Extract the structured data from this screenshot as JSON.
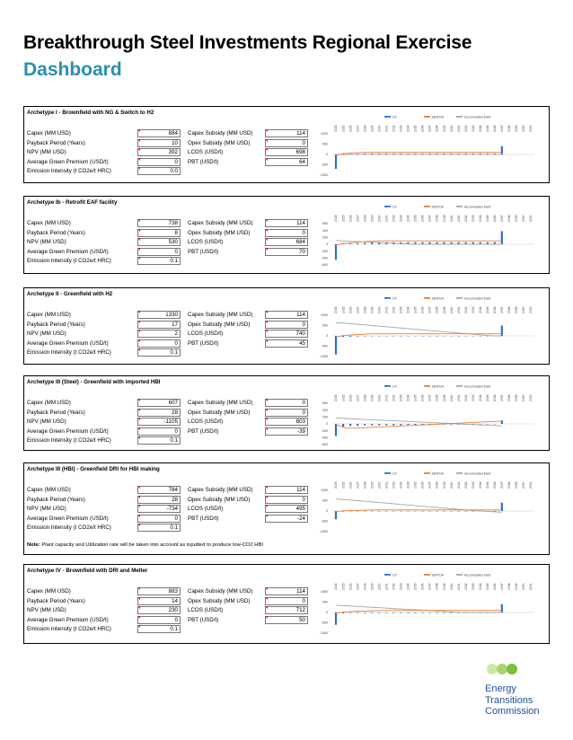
{
  "header": {
    "title": "Breakthrough Steel Investments Regional Exercise",
    "subtitle": "Dashboard"
  },
  "labels": {
    "capex": "Capex (MM USD)",
    "payback": "Payback Period (Years)",
    "npv": "NPV (MM USD)",
    "green_premium": "Average Green Premium (USD/t)",
    "emission": "Emission Intensity (t CO2e/t HRC)",
    "capex_subsidy": "Capex Subsidy (MM USD)",
    "opex_subsidy": "Opex Subsidy (MM USD)",
    "lcos": "LCOS (USD/t)",
    "pbt": "PBT (USD/t)"
  },
  "legend": [
    "CF",
    "EBITDA",
    "Accumulated Debt"
  ],
  "years": [
    "2024",
    "2025",
    "2026",
    "2027",
    "2028",
    "2029",
    "2030",
    "2031",
    "2032",
    "2033",
    "2034",
    "2035",
    "2036",
    "2037",
    "2038",
    "2039",
    "2040",
    "2041",
    "2042",
    "2043",
    "2044",
    "2045",
    "2046",
    "2047",
    "2048",
    "2049",
    "2050",
    "2051"
  ],
  "colors": {
    "cf": "#2e6fd1",
    "ebitda": "#ed7d31",
    "debt": "#a6a6a6",
    "accent": "#2a8fb0",
    "marker": "#d42020"
  },
  "panels": [
    {
      "title": "Archetype I - Brownfield with NG & Switch to H2",
      "capex": "884",
      "payback": "10",
      "npv": "392",
      "green_premium": "0",
      "emission": "0.0",
      "capex_subsidy": "114",
      "opex_subsidy": "0",
      "lcos": "698",
      "pbt": "64",
      "yticks": [
        "1000",
        "500",
        "0",
        "-500",
        "-1000"
      ]
    },
    {
      "title": "Archetype Ib - Retrofit EAF facility",
      "capex": "738",
      "payback": "8",
      "npv": "530",
      "green_premium": "0",
      "emission": "0.1",
      "capex_subsidy": "114",
      "opex_subsidy": "0",
      "lcos": "684",
      "pbt": "70",
      "yticks": [
        "600",
        "400",
        "200",
        "0",
        "-200",
        "-400",
        "-600"
      ]
    },
    {
      "title": "Archetype II - Greenfield with H2",
      "capex": "1330",
      "payback": "17",
      "npv": "2",
      "green_premium": "0",
      "emission": "0.1",
      "capex_subsidy": "114",
      "opex_subsidy": "0",
      "lcos": "740",
      "pbt": "45",
      "yticks": [
        "1000",
        "500",
        "0",
        "-500",
        "-1000"
      ]
    },
    {
      "title": "Archetype III (Steel) - Greenfield with imported HBI",
      "capex": "607",
      "payback": "28",
      "npv": "-1105",
      "green_premium": "0",
      "emission": "0.1",
      "capex_subsidy": "0",
      "opex_subsidy": "0",
      "lcos": "803",
      "pbt": "-39",
      "yticks": [
        "600",
        "400",
        "200",
        "0",
        "-200",
        "-400",
        "-600"
      ]
    },
    {
      "title": "Archetype III (HBI) - Greenfield DRI for HBI making",
      "capex": "784",
      "payback": "28",
      "npv": "-734",
      "green_premium": "0",
      "emission": "0.1",
      "capex_subsidy": "114",
      "opex_subsidy": "0",
      "lcos": "495",
      "pbt": "-24",
      "yticks": [
        "1000",
        "500",
        "0",
        "-500",
        "-1000"
      ],
      "note_prefix": "Note:",
      "note": " Plant capacity and Utilization rate will be taken into account as inputted to produce low-CO2 HBI"
    },
    {
      "title": "Archetype IV - Brownfield with DRI and Melter",
      "capex": "883",
      "payback": "14",
      "npv": "230",
      "green_premium": "0",
      "emission": "0.1",
      "capex_subsidy": "114",
      "opex_subsidy": "0",
      "lcos": "712",
      "pbt": "50",
      "yticks": [
        "1000",
        "500",
        "0",
        "-500",
        "-1000"
      ]
    }
  ],
  "chart_data": [
    {
      "type": "bar",
      "ylim": [
        -1000,
        1000
      ],
      "legend": [
        "CF",
        "EBITDA",
        "Accumulated Debt"
      ],
      "x": [
        "2024",
        "2025",
        "2026",
        "2027",
        "2028",
        "2029",
        "2030",
        "2031",
        "2032",
        "2033",
        "2034",
        "2035",
        "2036",
        "2037",
        "2038",
        "2039",
        "2040",
        "2041",
        "2042",
        "2043",
        "2044",
        "2045",
        "2046",
        "2047",
        "2048",
        "2049",
        "2050",
        "2051"
      ],
      "series": [
        {
          "name": "CF",
          "values": [
            -700,
            20,
            30,
            40,
            50,
            50,
            50,
            50,
            50,
            50,
            50,
            50,
            50,
            50,
            50,
            50,
            50,
            50,
            50,
            50,
            50,
            50,
            50,
            400,
            0,
            0,
            0,
            0
          ]
        },
        {
          "name": "EBITDA",
          "values": [
            -50,
            40,
            70,
            90,
            100,
            100,
            100,
            100,
            100,
            100,
            100,
            100,
            100,
            100,
            100,
            100,
            100,
            100,
            100,
            100,
            100,
            100,
            100,
            100,
            0,
            0,
            0,
            0
          ]
        },
        {
          "name": "Accumulated Debt",
          "values": [
            0,
            0,
            0,
            0,
            0,
            0,
            0,
            0,
            0,
            0,
            0,
            0,
            0,
            0,
            0,
            0,
            0,
            0,
            0,
            0,
            0,
            0,
            0,
            0,
            0,
            0,
            0,
            0
          ]
        }
      ]
    },
    {
      "type": "bar",
      "ylim": [
        -600,
        600
      ],
      "legend": [
        "CF",
        "EBITDA",
        "Accumulated Debt"
      ],
      "x": [
        "2024",
        "2025",
        "2026",
        "2027",
        "2028",
        "2029",
        "2030",
        "2031",
        "2032",
        "2033",
        "2034",
        "2035",
        "2036",
        "2037",
        "2038",
        "2039",
        "2040",
        "2041",
        "2042",
        "2043",
        "2044",
        "2045",
        "2046",
        "2047",
        "2048",
        "2049",
        "2050",
        "2051"
      ],
      "series": [
        {
          "name": "CF",
          "values": [
            -450,
            10,
            20,
            30,
            40,
            60,
            60,
            60,
            60,
            60,
            60,
            60,
            60,
            60,
            60,
            60,
            60,
            60,
            60,
            60,
            60,
            60,
            60,
            380,
            0,
            0,
            0,
            0
          ]
        },
        {
          "name": "EBITDA",
          "values": [
            -20,
            20,
            40,
            60,
            80,
            90,
            100,
            100,
            100,
            100,
            100,
            100,
            100,
            100,
            100,
            100,
            100,
            100,
            100,
            100,
            100,
            100,
            100,
            100,
            0,
            0,
            0,
            0
          ]
        },
        {
          "name": "Accumulated Debt",
          "values": [
            110,
            100,
            90,
            80,
            70,
            60,
            50,
            40,
            30,
            20,
            10,
            0,
            0,
            0,
            0,
            0,
            0,
            0,
            0,
            0,
            0,
            0,
            0,
            0,
            0,
            0,
            0,
            0
          ]
        }
      ]
    },
    {
      "type": "bar",
      "ylim": [
        -1000,
        1000
      ],
      "legend": [
        "CF",
        "EBITDA",
        "Accumulated Debt"
      ],
      "x": [
        "2024",
        "2025",
        "2026",
        "2027",
        "2028",
        "2029",
        "2030",
        "2031",
        "2032",
        "2033",
        "2034",
        "2035",
        "2036",
        "2037",
        "2038",
        "2039",
        "2040",
        "2041",
        "2042",
        "2043",
        "2044",
        "2045",
        "2046",
        "2047",
        "2048",
        "2049",
        "2050",
        "2051"
      ],
      "series": [
        {
          "name": "CF",
          "values": [
            -900,
            -50,
            -40,
            -30,
            -20,
            -20,
            -20,
            -20,
            -20,
            -20,
            -20,
            -20,
            -20,
            -20,
            -20,
            -20,
            -20,
            -20,
            -20,
            -20,
            -20,
            -20,
            -20,
            500,
            0,
            0,
            0,
            0
          ]
        },
        {
          "name": "EBITDA",
          "values": [
            -60,
            20,
            40,
            60,
            80,
            100,
            100,
            100,
            100,
            100,
            100,
            100,
            100,
            100,
            100,
            100,
            100,
            100,
            100,
            100,
            100,
            100,
            100,
            100,
            0,
            0,
            0,
            0
          ]
        },
        {
          "name": "Accumulated Debt",
          "values": [
            640,
            620,
            590,
            560,
            530,
            500,
            470,
            440,
            410,
            380,
            350,
            320,
            290,
            260,
            230,
            200,
            170,
            140,
            110,
            80,
            50,
            20,
            0,
            0,
            0,
            0,
            0,
            0
          ]
        }
      ]
    },
    {
      "type": "bar",
      "ylim": [
        -600,
        600
      ],
      "legend": [
        "CF",
        "EBITDA",
        "Accumulated Debt"
      ],
      "x": [
        "2024",
        "2025",
        "2026",
        "2027",
        "2028",
        "2029",
        "2030",
        "2031",
        "2032",
        "2033",
        "2034",
        "2035",
        "2036",
        "2037",
        "2038",
        "2039",
        "2040",
        "2041",
        "2042",
        "2043",
        "2044",
        "2045",
        "2046",
        "2047",
        "2048",
        "2049",
        "2050",
        "2051"
      ],
      "series": [
        {
          "name": "CF",
          "values": [
            -350,
            -80,
            -60,
            -50,
            -40,
            -40,
            -40,
            -40,
            -40,
            -40,
            -30,
            -30,
            -30,
            -30,
            -20,
            -20,
            -20,
            -20,
            -10,
            -10,
            -10,
            -10,
            -10,
            100,
            0,
            0,
            0,
            0
          ]
        },
        {
          "name": "EBITDA",
          "values": [
            -20,
            -100,
            -130,
            -120,
            -110,
            -100,
            -90,
            -80,
            -70,
            -60,
            -50,
            -40,
            -30,
            -20,
            -10,
            0,
            10,
            20,
            30,
            40,
            50,
            60,
            70,
            80,
            0,
            0,
            0,
            0
          ]
        },
        {
          "name": "Accumulated Debt",
          "values": [
            170,
            160,
            150,
            140,
            130,
            120,
            110,
            100,
            90,
            80,
            70,
            60,
            50,
            40,
            30,
            20,
            10,
            0,
            -10,
            -20,
            -30,
            -40,
            -50,
            -60,
            0,
            0,
            0,
            0
          ]
        }
      ]
    },
    {
      "type": "bar",
      "ylim": [
        -1000,
        1000
      ],
      "legend": [
        "CF",
        "EBITDA",
        "Accumulated Debt"
      ],
      "x": [
        "2024",
        "2025",
        "2026",
        "2027",
        "2028",
        "2029",
        "2030",
        "2031",
        "2032",
        "2033",
        "2034",
        "2035",
        "2036",
        "2037",
        "2038",
        "2039",
        "2040",
        "2041",
        "2042",
        "2043",
        "2044",
        "2045",
        "2046",
        "2047",
        "2048",
        "2049",
        "2050",
        "2051"
      ],
      "series": [
        {
          "name": "CF",
          "values": [
            -400,
            -30,
            -20,
            -20,
            -20,
            -20,
            -20,
            -20,
            -20,
            -20,
            -20,
            -20,
            -20,
            -20,
            -20,
            -20,
            -20,
            -20,
            -20,
            -20,
            -20,
            -20,
            -20,
            400,
            0,
            0,
            0,
            0
          ]
        },
        {
          "name": "EBITDA",
          "values": [
            -30,
            10,
            20,
            30,
            40,
            50,
            50,
            50,
            50,
            50,
            50,
            50,
            50,
            50,
            50,
            50,
            50,
            50,
            50,
            50,
            50,
            50,
            50,
            50,
            0,
            0,
            0,
            0
          ]
        },
        {
          "name": "Accumulated Debt",
          "values": [
            580,
            560,
            530,
            500,
            470,
            440,
            410,
            380,
            350,
            320,
            290,
            260,
            230,
            200,
            170,
            140,
            110,
            80,
            50,
            20,
            0,
            -20,
            -40,
            -60,
            0,
            0,
            0,
            0
          ]
        }
      ]
    },
    {
      "type": "bar",
      "ylim": [
        -1000,
        1000
      ],
      "legend": [
        "CF",
        "EBITDA",
        "Accumulated Debt"
      ],
      "x": [
        "2024",
        "2025",
        "2026",
        "2027",
        "2028",
        "2029",
        "2030",
        "2031",
        "2032",
        "2033",
        "2034",
        "2035",
        "2036",
        "2037",
        "2038",
        "2039",
        "2040",
        "2041",
        "2042",
        "2043",
        "2044",
        "2045",
        "2046",
        "2047",
        "2048",
        "2049",
        "2050",
        "2051"
      ],
      "series": [
        {
          "name": "CF",
          "values": [
            -600,
            -40,
            -30,
            -30,
            -30,
            -30,
            -30,
            -30,
            -30,
            -30,
            -30,
            -30,
            -30,
            -30,
            -30,
            -30,
            -30,
            -30,
            -30,
            -30,
            -30,
            -30,
            -30,
            400,
            0,
            0,
            0,
            0
          ]
        },
        {
          "name": "EBITDA",
          "values": [
            -40,
            20,
            40,
            60,
            70,
            80,
            90,
            100,
            100,
            100,
            100,
            100,
            100,
            100,
            100,
            100,
            100,
            100,
            100,
            100,
            100,
            100,
            100,
            100,
            0,
            0,
            0,
            0
          ]
        },
        {
          "name": "Accumulated Debt",
          "values": [
            350,
            330,
            310,
            290,
            270,
            250,
            230,
            210,
            190,
            170,
            150,
            130,
            110,
            90,
            70,
            50,
            30,
            10,
            0,
            0,
            0,
            0,
            0,
            0,
            0,
            0,
            0,
            0
          ]
        }
      ]
    }
  ],
  "footer": {
    "logo_lines": [
      "Energy",
      "Transitions",
      "Commission"
    ]
  }
}
